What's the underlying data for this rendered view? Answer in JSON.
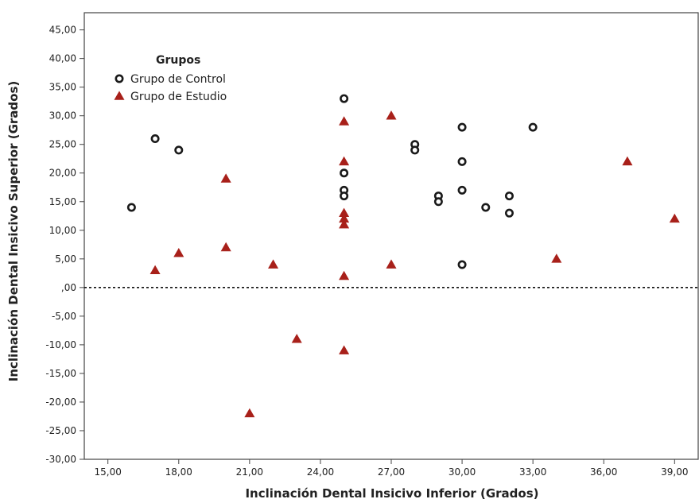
{
  "chart_data": {
    "type": "scatter",
    "title": "",
    "xlabel": "Inclinación Dental Insicivo Inferior (Grados)",
    "ylabel": "Inclinación Dental Insicivo Superior (Grados)",
    "xlim": [
      14,
      40
    ],
    "ylim": [
      -30,
      48
    ],
    "x_ticks": [
      15,
      18,
      21,
      24,
      27,
      30,
      33,
      36,
      39
    ],
    "x_tick_labels": [
      "15,00",
      "18,00",
      "21,00",
      "24,00",
      "27,00",
      "30,00",
      "33,00",
      "36,00",
      "39,00"
    ],
    "y_ticks": [
      45,
      40,
      35,
      30,
      25,
      20,
      15,
      10,
      5,
      0,
      -5,
      -10,
      -15,
      -20,
      -25,
      -30
    ],
    "y_tick_labels": [
      "45,00",
      "40,00",
      "35,00",
      "30,00",
      "25,00",
      "20,00",
      "15,00",
      "10,00",
      "5,00",
      ",00",
      "-5,00",
      "-10,00",
      "-15,00",
      "-20,00",
      "-25,00",
      "-30,00"
    ],
    "reference_line": {
      "y": 0,
      "style": "dotted"
    },
    "grid": false,
    "legend": {
      "title": "Grupos",
      "placement": "top-left"
    },
    "series": [
      {
        "name": "Grupo de Control",
        "marker": "circle",
        "color": "#1a1a1a",
        "points": [
          [
            16,
            14
          ],
          [
            17,
            26
          ],
          [
            18,
            24
          ],
          [
            25,
            33
          ],
          [
            25,
            20
          ],
          [
            25,
            17
          ],
          [
            25,
            16
          ],
          [
            28,
            25
          ],
          [
            28,
            24
          ],
          [
            29,
            16
          ],
          [
            29,
            15
          ],
          [
            30,
            28
          ],
          [
            30,
            22
          ],
          [
            30,
            17
          ],
          [
            30,
            4
          ],
          [
            31,
            14
          ],
          [
            32,
            16
          ],
          [
            32,
            13
          ],
          [
            33,
            28
          ]
        ]
      },
      {
        "name": "Grupo de Estudio",
        "marker": "triangle",
        "color": "#a8201a",
        "points": [
          [
            17,
            3
          ],
          [
            18,
            6
          ],
          [
            20,
            19
          ],
          [
            20,
            7
          ],
          [
            21,
            -22
          ],
          [
            22,
            4
          ],
          [
            23,
            -9
          ],
          [
            25,
            29
          ],
          [
            25,
            22
          ],
          [
            25,
            13
          ],
          [
            25,
            12
          ],
          [
            25,
            11
          ],
          [
            25,
            2
          ],
          [
            25,
            -11
          ],
          [
            27,
            30
          ],
          [
            27,
            4
          ],
          [
            34,
            5
          ],
          [
            37,
            22
          ],
          [
            39,
            12
          ]
        ]
      }
    ]
  }
}
